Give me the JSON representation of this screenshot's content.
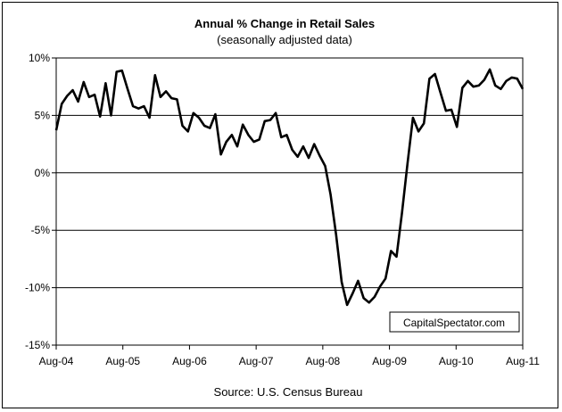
{
  "chart_data": {
    "type": "line",
    "title": "Annual %  Change in Retail Sales",
    "subtitle": "(seasonally adjusted data)",
    "source": "Source: U.S. Census Bureau",
    "watermark": "CapitalSpectator.com",
    "xlabel": "",
    "ylabel": "",
    "ylim": [
      -15,
      10
    ],
    "y_ticks": [
      {
        "value": 10,
        "label": "10%"
      },
      {
        "value": 5,
        "label": "5%"
      },
      {
        "value": 0,
        "label": "0%"
      },
      {
        "value": -5,
        "label": "-5%"
      },
      {
        "value": -10,
        "label": "-10%"
      },
      {
        "value": -15,
        "label": "-15%"
      }
    ],
    "x_ticks": [
      "Aug-04",
      "Aug-05",
      "Aug-06",
      "Aug-07",
      "Aug-08",
      "Aug-09",
      "Aug-10",
      "Aug-11"
    ],
    "x_start": "Aug-04",
    "x_end": "Aug-11",
    "grid": "horizontal",
    "colors": {
      "line": "#000000",
      "grid": "#000000",
      "background": "#ffffff"
    },
    "series": [
      {
        "values": [
          3.7,
          6.0,
          6.7,
          7.2,
          6.2,
          7.9,
          6.6,
          6.8,
          4.9,
          7.8,
          5.0,
          8.8,
          8.9,
          7.3,
          5.8,
          5.6,
          5.8,
          4.8,
          8.5,
          6.6,
          7.1,
          6.5,
          6.4,
          4.1,
          3.6,
          5.2,
          4.8,
          4.1,
          3.9,
          5.1,
          1.6,
          2.7,
          3.3,
          2.3,
          4.2,
          3.3,
          2.7,
          2.9,
          4.5,
          4.6,
          5.2,
          3.1,
          3.3,
          2.0,
          1.4,
          2.3,
          1.3,
          2.5,
          1.5,
          0.6,
          -1.9,
          -5.4,
          -9.5,
          -11.5,
          -10.5,
          -9.4,
          -10.9,
          -11.3,
          -10.8,
          -9.9,
          -9.2,
          -6.8,
          -7.3,
          -3.5,
          0.8,
          4.8,
          3.6,
          4.3,
          8.2,
          8.6,
          7.0,
          5.4,
          5.5,
          4.0,
          7.4,
          8.0,
          7.5,
          7.6,
          8.1,
          9.0,
          7.6,
          7.3,
          8.0,
          8.3,
          8.2,
          7.3
        ]
      }
    ]
  }
}
